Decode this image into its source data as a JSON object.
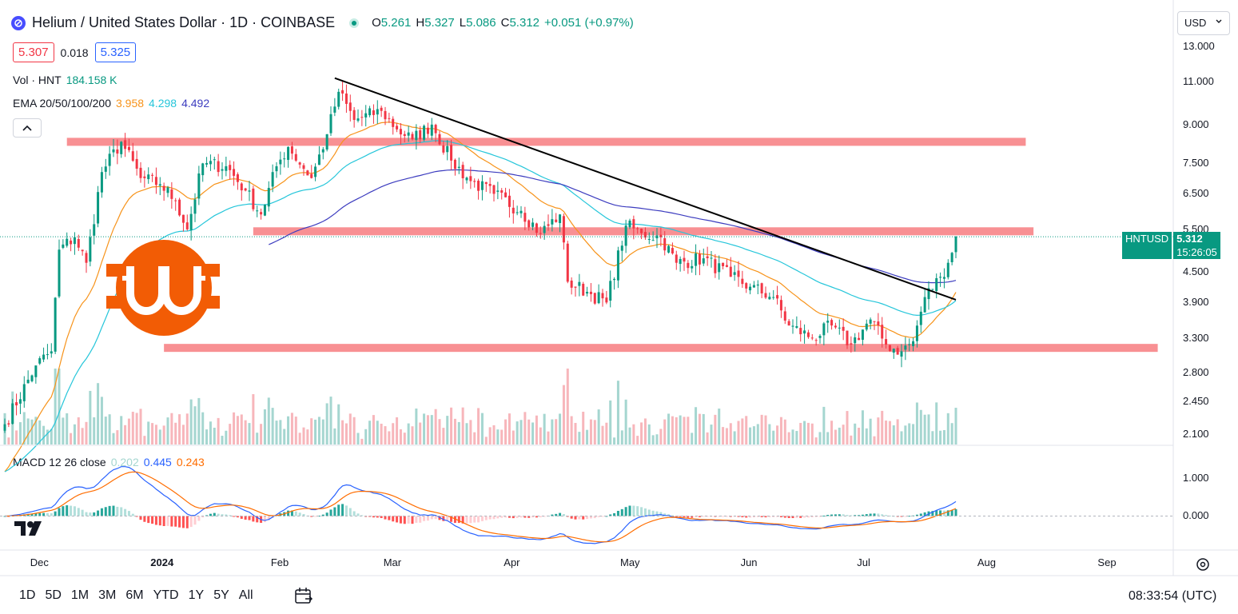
{
  "header": {
    "title": "Helium / United States Dollar · 1D · COINBASE",
    "ohlc": {
      "o_label": "O",
      "o": "5.261",
      "h_label": "H",
      "h": "5.327",
      "l_label": "L",
      "l": "5.086",
      "c_label": "C",
      "c": "5.312",
      "change": "+0.051 (+0.97%)"
    },
    "bid": "5.307",
    "spread": "0.018",
    "ask": "5.325"
  },
  "indicators": {
    "vol_label": "Vol · HNT",
    "vol_value": "184.158 K",
    "ema_label": "EMA 20/50/100/200",
    "ema20": "3.958",
    "ema50": "4.298",
    "ema100": "4.492",
    "macd_label": "MACD 12 26 close",
    "macd_hist": "0.202",
    "macd_line": "0.445",
    "macd_signal": "0.243"
  },
  "currency": "USD",
  "price_axis": [
    "13.000",
    "11.000",
    "9.000",
    "7.500",
    "6.500",
    "5.500",
    "4.500",
    "3.900",
    "3.300",
    "2.800",
    "2.450",
    "2.100"
  ],
  "macd_axis": [
    "1.000",
    "0.000"
  ],
  "time_axis": [
    "Dec",
    "2024",
    "Feb",
    "Mar",
    "Apr",
    "May",
    "Jun",
    "Jul",
    "Aug",
    "Sep"
  ],
  "last_price": {
    "symbol": "HNTUSD",
    "price": "5.312",
    "countdown": "15:26:05"
  },
  "timeframes": [
    "1D",
    "5D",
    "1M",
    "3M",
    "6M",
    "YTD",
    "1Y",
    "5Y",
    "All"
  ],
  "clock": "08:33:54 (UTC)",
  "colors": {
    "up": "#089981",
    "down": "#f23645",
    "ema20": "#f7931a",
    "ema50": "#26c6da",
    "ema100": "#3c3cbf",
    "zone": "#f77c80",
    "macd": "#2962ff",
    "signal": "#ff6d00"
  },
  "chart_data": {
    "type": "candlestick",
    "symbol": "HNTUSD",
    "interval": "1D",
    "y_scale": "log",
    "ylim": [
      2.0,
      13.5
    ],
    "x_range": [
      "2023-11-22",
      "2024-09-18"
    ],
    "anchors": [
      [
        "2023-11-22",
        2.2
      ],
      [
        "2023-11-30",
        2.9
      ],
      [
        "2023-12-04",
        3.1
      ],
      [
        "2023-12-06",
        5.0
      ],
      [
        "2023-12-10",
        5.3
      ],
      [
        "2023-12-13",
        4.7
      ],
      [
        "2023-12-17",
        7.2
      ],
      [
        "2023-12-22",
        8.3
      ],
      [
        "2023-12-27",
        7.0
      ],
      [
        "2024-01-01",
        6.8
      ],
      [
        "2024-01-05",
        6.3
      ],
      [
        "2024-01-08",
        5.5
      ],
      [
        "2024-01-12",
        7.5
      ],
      [
        "2024-01-18",
        7.4
      ],
      [
        "2024-01-23",
        6.6
      ],
      [
        "2024-01-27",
        5.9
      ],
      [
        "2024-01-31",
        7.4
      ],
      [
        "2024-02-03",
        8.1
      ],
      [
        "2024-02-09",
        7.0
      ],
      [
        "2024-02-13",
        8.6
      ],
      [
        "2024-02-16",
        10.5
      ],
      [
        "2024-02-20",
        9.2
      ],
      [
        "2024-02-27",
        9.6
      ],
      [
        "2024-03-02",
        8.8
      ],
      [
        "2024-03-06",
        8.4
      ],
      [
        "2024-03-11",
        9.0
      ],
      [
        "2024-03-16",
        7.6
      ],
      [
        "2024-03-21",
        6.9
      ],
      [
        "2024-03-27",
        6.5
      ],
      [
        "2024-04-03",
        6.0
      ],
      [
        "2024-04-08",
        5.4
      ],
      [
        "2024-04-13",
        5.9
      ],
      [
        "2024-04-15",
        4.3
      ],
      [
        "2024-04-20",
        4.1
      ],
      [
        "2024-04-25",
        3.9
      ],
      [
        "2024-04-30",
        5.6
      ],
      [
        "2024-05-04",
        5.4
      ],
      [
        "2024-05-09",
        5.3
      ],
      [
        "2024-05-13",
        4.7
      ],
      [
        "2024-05-20",
        4.8
      ],
      [
        "2024-05-27",
        4.4
      ],
      [
        "2024-06-01",
        4.2
      ],
      [
        "2024-06-07",
        4.0
      ],
      [
        "2024-06-11",
        3.5
      ],
      [
        "2024-06-17",
        3.3
      ],
      [
        "2024-06-22",
        3.5
      ],
      [
        "2024-06-27",
        3.2
      ],
      [
        "2024-07-02",
        3.6
      ],
      [
        "2024-07-06",
        3.2
      ],
      [
        "2024-07-10",
        3.1
      ],
      [
        "2024-07-13",
        3.25
      ],
      [
        "2024-07-16",
        4.0
      ],
      [
        "2024-07-20",
        4.4
      ],
      [
        "2024-07-22",
        4.7
      ],
      [
        "2024-07-24",
        5.31
      ]
    ],
    "zones": [
      {
        "from": "2023-12-08",
        "to": "2024-08-11",
        "y": 8.3
      },
      {
        "from": "2024-01-25",
        "to": "2024-08-13",
        "y": 5.45
      },
      {
        "from": "2024-01-02",
        "to": "2024-09-14",
        "y": 3.15
      }
    ],
    "trendline": {
      "from": [
        "2024-02-15",
        11.2
      ],
      "to": [
        "2024-07-24",
        3.95
      ]
    },
    "last_close": 5.312,
    "macd": {
      "ylim": [
        -0.85,
        1.75
      ],
      "level": 0
    }
  }
}
